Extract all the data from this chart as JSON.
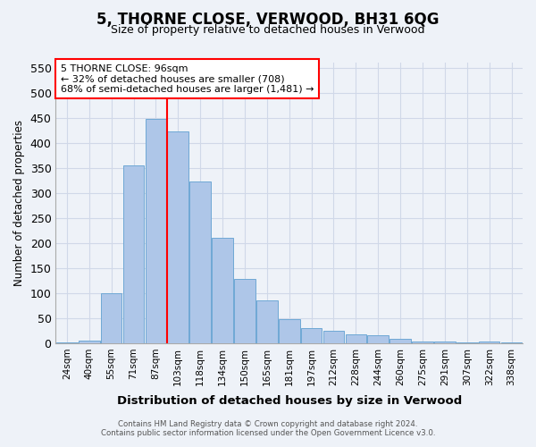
{
  "title": "5, THORNE CLOSE, VERWOOD, BH31 6QG",
  "subtitle": "Size of property relative to detached houses in Verwood",
  "xlabel": "Distribution of detached houses by size in Verwood",
  "ylabel": "Number of detached properties",
  "footer_line1": "Contains HM Land Registry data © Crown copyright and database right 2024.",
  "footer_line2": "Contains public sector information licensed under the Open Government Licence v3.0.",
  "categories": [
    "24sqm",
    "40sqm",
    "55sqm",
    "71sqm",
    "87sqm",
    "103sqm",
    "118sqm",
    "134sqm",
    "150sqm",
    "165sqm",
    "181sqm",
    "197sqm",
    "212sqm",
    "228sqm",
    "244sqm",
    "260sqm",
    "275sqm",
    "291sqm",
    "307sqm",
    "322sqm",
    "338sqm"
  ],
  "values": [
    2,
    6,
    100,
    355,
    448,
    422,
    322,
    210,
    128,
    85,
    48,
    30,
    25,
    18,
    15,
    9,
    4,
    4,
    2,
    4,
    2
  ],
  "bar_color": "#aec6e8",
  "bar_edge_color": "#6fa8d5",
  "vline_pos": 4.5,
  "vline_color": "red",
  "annotation_text": "5 THORNE CLOSE: 96sqm\n← 32% of detached houses are smaller (708)\n68% of semi-detached houses are larger (1,481) →",
  "annotation_box_color": "white",
  "annotation_box_edge": "red",
  "ylim": [
    0,
    560
  ],
  "yticks": [
    0,
    50,
    100,
    150,
    200,
    250,
    300,
    350,
    400,
    450,
    500,
    550
  ],
  "grid_color": "#d0d8e8",
  "bg_color": "#eef2f8"
}
